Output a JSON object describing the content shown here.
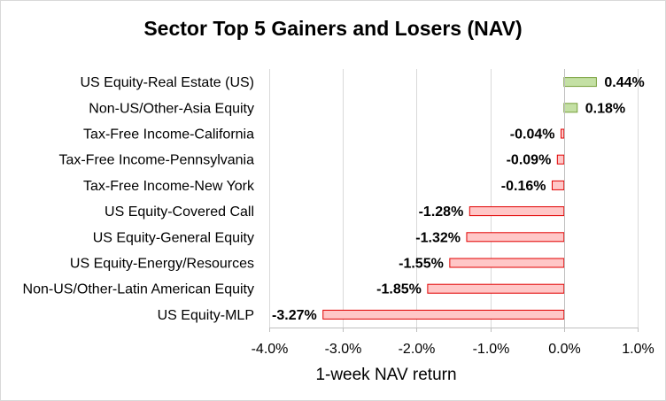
{
  "chart_data": {
    "type": "bar",
    "orientation": "horizontal",
    "title": "Sector Top 5 Gainers and Losers (NAV)",
    "xlabel": "1-week NAV return",
    "ylabel": "",
    "xlim": [
      -4.0,
      1.0
    ],
    "x_ticks": [
      -4.0,
      -3.0,
      -2.0,
      -1.0,
      0.0,
      1.0
    ],
    "x_tick_labels": [
      "-4.0%",
      "-3.0%",
      "-2.0%",
      "-1.0%",
      "0.0%",
      "1.0%"
    ],
    "grid": "vertical",
    "legend": "none",
    "categories": [
      "US Equity-Real Estate (US)",
      "Non-US/Other-Asia Equity",
      "Tax-Free Income-California",
      "Tax-Free Income-Pennsylvania",
      "Tax-Free Income-New York",
      "US Equity-Covered Call",
      "US Equity-General Equity",
      "US Equity-Energy/Resources",
      "Non-US/Other-Latin American Equity",
      "US Equity-MLP"
    ],
    "values": [
      0.44,
      0.18,
      -0.04,
      -0.09,
      -0.16,
      -1.28,
      -1.32,
      -1.55,
      -1.85,
      -3.27
    ],
    "data_labels": [
      "0.44%",
      "0.18%",
      "-0.04%",
      "-0.09%",
      "-0.16%",
      "-1.28%",
      "-1.32%",
      "-1.55%",
      "-1.85%",
      "-3.27%"
    ],
    "colors": {
      "positive_fill": "#c4e0a4",
      "positive_stroke": "#77a03a",
      "negative_fill": "#ffc7c7",
      "negative_stroke": "#e00000",
      "gridline": "#d9d9d9",
      "axis": "#bfbfbf"
    }
  }
}
